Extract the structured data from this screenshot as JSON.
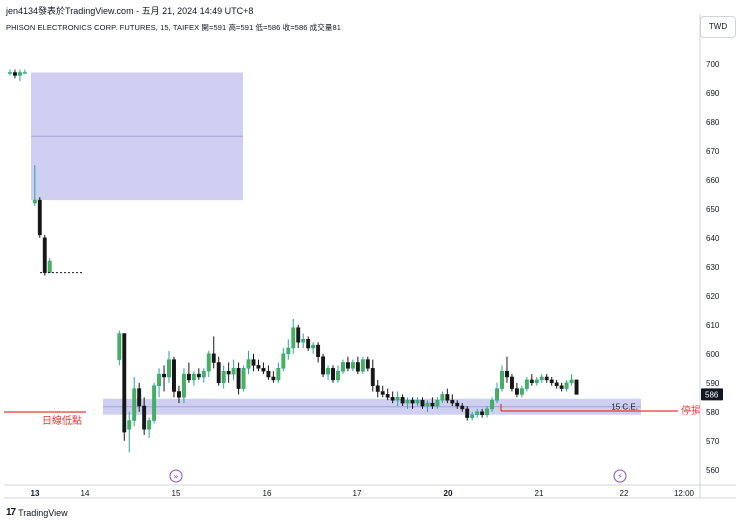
{
  "header": {
    "publisher_line": "jen4134發表於TradingView.com - 五月 21, 2024 14:49 UTC+8",
    "legend": "PHISON ELECTRONICS CORP. FUTURES, 15, TAIFEX  開=591  高=591  低=586  收=586  成交量81",
    "currency_button": "TWD"
  },
  "footer": {
    "logo_mark": "17",
    "brand": "TradingView"
  },
  "chart_data": {
    "type": "candlestick",
    "symbol": "PHISON ELECTRONICS CORP. FUTURES",
    "interval": "15",
    "exchange": "TAIFEX",
    "ohlc_summary": {
      "open": 591,
      "high": 591,
      "low": 586,
      "close": 586,
      "volume": 81
    },
    "last_price": 586,
    "currency": "TWD",
    "y_ticks": [
      700,
      690,
      680,
      670,
      660,
      650,
      640,
      630,
      620,
      610,
      600,
      590,
      580,
      570,
      560
    ],
    "y_range": [
      556,
      704
    ],
    "x_ticks": [
      "13",
      "14",
      "15",
      "16",
      "17",
      "20",
      "21",
      "22",
      "12:00"
    ],
    "annotations": {
      "upper_zone": {
        "top": 697,
        "bottom": 653,
        "midline": 675
      },
      "lower_zone": {
        "top": 584.5,
        "bottom": 579,
        "label": "15 C.E."
      },
      "daily_low": {
        "price": 577,
        "label": "日線低點"
      },
      "stop_loss": {
        "price": 577,
        "label": "停損"
      },
      "dashed_level": 628
    },
    "candles": [
      [
        1,
        697,
        698,
        696,
        697
      ],
      [
        2,
        697,
        698,
        695,
        696
      ],
      [
        3,
        696,
        698,
        694,
        697
      ],
      [
        4,
        697,
        697,
        698,
        697
      ],
      [
        6,
        652,
        665,
        651,
        653
      ],
      [
        7,
        653,
        654,
        640,
        641
      ],
      [
        8,
        640,
        641,
        627,
        628
      ],
      [
        9,
        628,
        633,
        628,
        632
      ],
      [
        23,
        598,
        608,
        596,
        607
      ],
      [
        24,
        607,
        607,
        570,
        573
      ],
      [
        25,
        574,
        580,
        566,
        577
      ],
      [
        26,
        577,
        592,
        575,
        588
      ],
      [
        27,
        588,
        590,
        580,
        582
      ],
      [
        28,
        582,
        585,
        572,
        574
      ],
      [
        29,
        574,
        578,
        571,
        577
      ],
      [
        30,
        577,
        590,
        576,
        589
      ],
      [
        31,
        589,
        595,
        585,
        593
      ],
      [
        32,
        593,
        596,
        587,
        592
      ],
      [
        33,
        592,
        601,
        590,
        598
      ],
      [
        34,
        598,
        599,
        585,
        587
      ],
      [
        35,
        587,
        589,
        583,
        585
      ],
      [
        36,
        585,
        595,
        583,
        593
      ],
      [
        37,
        593,
        597,
        590,
        591
      ],
      [
        38,
        591,
        594,
        589,
        593
      ],
      [
        39,
        593,
        595,
        591,
        592
      ],
      [
        40,
        592,
        595,
        590,
        594
      ],
      [
        41,
        594,
        601,
        592,
        600
      ],
      [
        42,
        600,
        606,
        595,
        597
      ],
      [
        43,
        597,
        599,
        589,
        590
      ],
      [
        44,
        590,
        596,
        588,
        594
      ],
      [
        45,
        594,
        597,
        590,
        593
      ],
      [
        46,
        593,
        598,
        591,
        595
      ],
      [
        47,
        595,
        597,
        586,
        588
      ],
      [
        48,
        588,
        596,
        587,
        595
      ],
      [
        49,
        595,
        601,
        593,
        598
      ],
      [
        50,
        598,
        600,
        594,
        596
      ],
      [
        51,
        596,
        598,
        594,
        595
      ],
      [
        52,
        595,
        597,
        593,
        594
      ],
      [
        53,
        594,
        596,
        591,
        592
      ],
      [
        54,
        592,
        594,
        590,
        591
      ],
      [
        55,
        591,
        597,
        590,
        595
      ],
      [
        56,
        595,
        602,
        594,
        600
      ],
      [
        57,
        600,
        605,
        598,
        602
      ],
      [
        58,
        602,
        612,
        600,
        609
      ],
      [
        59,
        609,
        610,
        602,
        604
      ],
      [
        60,
        604,
        607,
        602,
        605
      ],
      [
        61,
        605,
        606,
        601,
        602
      ],
      [
        62,
        602,
        604,
        600,
        603
      ],
      [
        63,
        603,
        604,
        597,
        599
      ],
      [
        64,
        599,
        600,
        592,
        593
      ],
      [
        65,
        593,
        596,
        591,
        595
      ],
      [
        66,
        595,
        596,
        590,
        591
      ],
      [
        67,
        591,
        596,
        590,
        594
      ],
      [
        68,
        594,
        598,
        593,
        597
      ],
      [
        69,
        597,
        599,
        594,
        595
      ],
      [
        70,
        595,
        598,
        594,
        597
      ],
      [
        71,
        597,
        599,
        593,
        594
      ],
      [
        72,
        594,
        599,
        593,
        598
      ],
      [
        73,
        598,
        599,
        594,
        595
      ],
      [
        74,
        595,
        598,
        587,
        589
      ],
      [
        75,
        589,
        591,
        585,
        587
      ],
      [
        76,
        587,
        589,
        585,
        586
      ],
      [
        77,
        586,
        588,
        584,
        585
      ],
      [
        78,
        585,
        587,
        583,
        584
      ],
      [
        79,
        584,
        587,
        582,
        585
      ],
      [
        80,
        585,
        586,
        582,
        583
      ],
      [
        81,
        583,
        585,
        581,
        584
      ],
      [
        82,
        584,
        585,
        581,
        583
      ],
      [
        83,
        583,
        585,
        582,
        584
      ],
      [
        84,
        584,
        585,
        581,
        582
      ],
      [
        85,
        582,
        584,
        580,
        583
      ],
      [
        86,
        583,
        585,
        581,
        582
      ],
      [
        87,
        582,
        585,
        581,
        584
      ],
      [
        88,
        584,
        587,
        583,
        586
      ],
      [
        89,
        586,
        588,
        583,
        584
      ],
      [
        90,
        584,
        586,
        582,
        583
      ],
      [
        91,
        583,
        584,
        581,
        582
      ],
      [
        92,
        582,
        583,
        580,
        581
      ],
      [
        93,
        581,
        582,
        577,
        578
      ],
      [
        94,
        578,
        580,
        577,
        579
      ],
      [
        95,
        579,
        581,
        578,
        580
      ],
      [
        96,
        580,
        581,
        578,
        579
      ],
      [
        97,
        579,
        582,
        578,
        581
      ],
      [
        98,
        581,
        585,
        580,
        584
      ],
      [
        99,
        584,
        590,
        583,
        588
      ],
      [
        100,
        588,
        596,
        587,
        594
      ],
      [
        101,
        594,
        599,
        590,
        592
      ],
      [
        102,
        592,
        593,
        587,
        588
      ],
      [
        103,
        588,
        590,
        585,
        586
      ],
      [
        104,
        586,
        589,
        585,
        588
      ],
      [
        105,
        588,
        592,
        587,
        591
      ],
      [
        106,
        591,
        593,
        589,
        590
      ],
      [
        107,
        590,
        592,
        589,
        591
      ],
      [
        108,
        591,
        593,
        590,
        592
      ],
      [
        109,
        592,
        593,
        590,
        591
      ],
      [
        110,
        591,
        592,
        589,
        590
      ],
      [
        111,
        590,
        591,
        588,
        589
      ],
      [
        112,
        589,
        590,
        587,
        588
      ],
      [
        113,
        588,
        591,
        587,
        590
      ],
      [
        114,
        590,
        593,
        589,
        591
      ],
      [
        115,
        591,
        591,
        586,
        586
      ]
    ],
    "candle_columns": [
      "bar",
      "open",
      "high",
      "low",
      "close"
    ],
    "colors": {
      "up": "#26a69a",
      "down": "#161616",
      "up_fill": "#4caf50",
      "zone": "#c5c7ee",
      "stop": "#e53935",
      "axis_line": "#d1d4dc",
      "zone_line": "#9fa3d9"
    }
  }
}
